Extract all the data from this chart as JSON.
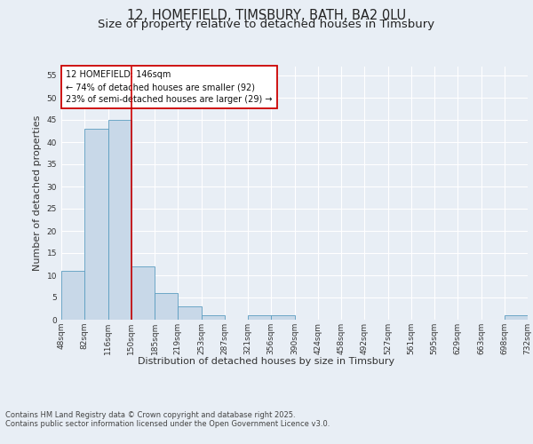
{
  "title_line1": "12, HOMEFIELD, TIMSBURY, BATH, BA2 0LU",
  "title_line2": "Size of property relative to detached houses in Timsbury",
  "xlabel": "Distribution of detached houses by size in Timsbury",
  "ylabel": "Number of detached properties",
  "bar_values": [
    11,
    43,
    45,
    12,
    6,
    3,
    1,
    0,
    1,
    1,
    0,
    0,
    0,
    0,
    0,
    0,
    0,
    0,
    0,
    1
  ],
  "bar_labels": [
    "48sqm",
    "82sqm",
    "116sqm",
    "150sqm",
    "185sqm",
    "219sqm",
    "253sqm",
    "287sqm",
    "321sqm",
    "356sqm",
    "390sqm",
    "424sqm",
    "458sqm",
    "492sqm",
    "527sqm",
    "561sqm",
    "595sqm",
    "629sqm",
    "663sqm",
    "698sqm",
    "732sqm"
  ],
  "bar_color": "#c8d8e8",
  "bar_edge_color": "#5b9dc0",
  "background_color": "#e8eef5",
  "plot_bg_color": "#e8eef5",
  "grid_color": "#ffffff",
  "vline_x": 2.5,
  "vline_color": "#cc0000",
  "annotation_text_line1": "12 HOMEFIELD: 146sqm",
  "annotation_text_line2": "← 74% of detached houses are smaller (92)",
  "annotation_text_line3": "23% of semi-detached houses are larger (29) →",
  "annotation_box_color": "#cc0000",
  "annotation_bg": "#ffffff",
  "ylim": [
    0,
    57
  ],
  "yticks": [
    0,
    5,
    10,
    15,
    20,
    25,
    30,
    35,
    40,
    45,
    50,
    55
  ],
  "footnote_line1": "Contains HM Land Registry data © Crown copyright and database right 2025.",
  "footnote_line2": "Contains public sector information licensed under the Open Government Licence v3.0.",
  "title_fontsize": 10.5,
  "subtitle_fontsize": 9.5,
  "ylabel_fontsize": 8,
  "xlabel_fontsize": 8,
  "tick_fontsize": 6.5,
  "annotation_fontsize": 7,
  "footnote_fontsize": 6
}
